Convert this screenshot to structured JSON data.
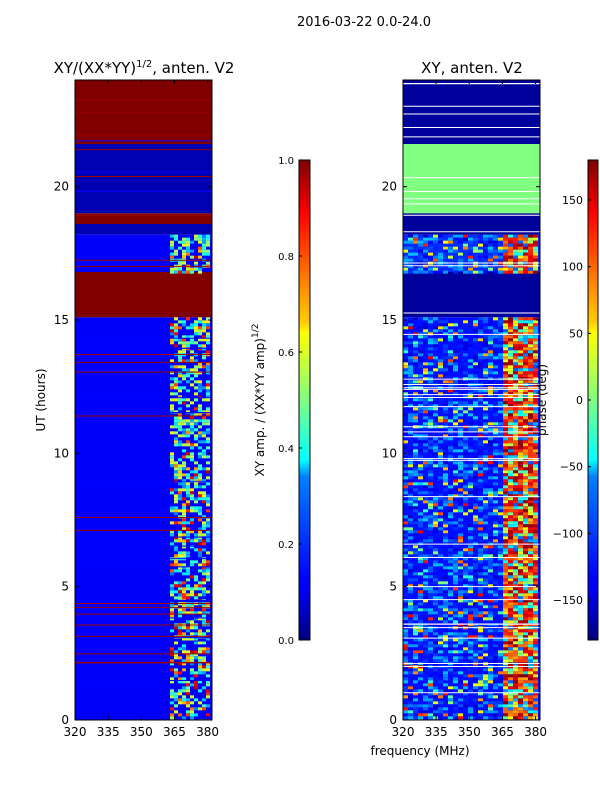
{
  "figure_title": "2016-03-22 0.0-24.0",
  "chart_data": [
    {
      "type": "heatmap",
      "title": "XY/(XX*YY)",
      "title_exponent": "1/2",
      "title_suffix": ", anten. V2",
      "xlabel": "",
      "ylabel": "UT (hours)",
      "xlim": [
        320,
        382
      ],
      "ylim": [
        0,
        24
      ],
      "xticks": [
        320,
        335,
        350,
        365,
        380
      ],
      "yticks": [
        0,
        5,
        10,
        15,
        20
      ],
      "colormap": "jet",
      "color_range": [
        0.0,
        1.0
      ],
      "colorbar_label": "XY amp. / (XX*YY amp)",
      "colorbar_label_exponent": "1/2",
      "colorbar_ticks": [
        "0.0",
        "0.2",
        "0.4",
        "0.6",
        "0.8",
        "1.0"
      ],
      "colorbar_tick_values": [
        0.0,
        0.2,
        0.4,
        0.6,
        0.8,
        1.0
      ],
      "regions": [
        {
          "y": [
            21.6,
            24.0
          ],
          "value": 1.0
        },
        {
          "y": [
            19.0,
            21.6
          ],
          "value": 0.05
        },
        {
          "y": [
            18.6,
            19.0
          ],
          "value": 1.0
        },
        {
          "y": [
            18.2,
            18.6
          ],
          "value": 0.05
        },
        {
          "y": [
            16.8,
            18.2
          ],
          "value": 0.12
        },
        {
          "y": [
            15.1,
            16.8
          ],
          "value": 1.0
        },
        {
          "y": [
            0.0,
            15.1
          ],
          "value": 0.12
        }
      ],
      "active_band_x": [
        363,
        381
      ],
      "active_band_hours": [
        [
          0.0,
          15.1
        ],
        [
          16.8,
          18.2
        ]
      ]
    },
    {
      "type": "heatmap",
      "title": "XY, anten. V2",
      "xlabel": "frequency (MHz)",
      "ylabel": "",
      "xlim": [
        320,
        382
      ],
      "ylim": [
        0,
        24
      ],
      "xticks": [
        320,
        335,
        350,
        365,
        380
      ],
      "yticks": [
        0,
        5,
        10,
        15,
        20
      ],
      "colormap": "jet",
      "color_range": [
        -180,
        180
      ],
      "colorbar_label": "phase (deg)",
      "colorbar_ticks": [
        "150",
        "100",
        "50",
        "0",
        "−50",
        "−100",
        "−150"
      ],
      "colorbar_tick_values": [
        150,
        100,
        50,
        0,
        -50,
        -100,
        -150
      ],
      "regions": [
        {
          "y": [
            21.6,
            24.0
          ],
          "value": -170
        },
        {
          "y": [
            19.0,
            21.6
          ],
          "value": 0
        },
        {
          "y": [
            18.2,
            19.0
          ],
          "value": -170
        },
        {
          "y": [
            16.8,
            18.2
          ],
          "value": -120
        },
        {
          "y": [
            15.1,
            16.8
          ],
          "value": -170
        },
        {
          "y": [
            0.0,
            15.1
          ],
          "value": -130
        }
      ],
      "active_band_x": [
        320,
        381
      ],
      "active_band_hours": [
        [
          0.0,
          15.1
        ],
        [
          16.8,
          18.2
        ]
      ]
    }
  ]
}
